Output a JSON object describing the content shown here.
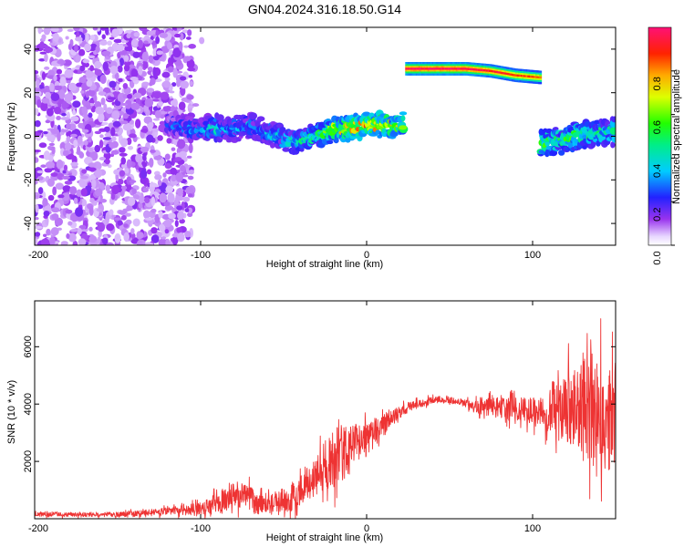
{
  "title": "GN04.2024.316.18.50.G14",
  "colors": {
    "snr_line": "#ee3333",
    "background": "#ffffff"
  },
  "chart_data": [
    {
      "type": "heatmap",
      "name": "spectrogram",
      "xlabel": "Height of straight line (km)",
      "ylabel": "Frequency (Hz)",
      "xlim": [
        -200,
        150
      ],
      "ylim": [
        -50,
        50
      ],
      "x_ticks": [
        "-200",
        "-100",
        "0",
        "100"
      ],
      "y_ticks": [
        "-40",
        "-20",
        "0",
        "20",
        "40"
      ],
      "colorbar": {
        "label": "Normalized spectral amplitude",
        "range": [
          0,
          1
        ],
        "ticks": [
          "0.0",
          "0.2",
          "0.4",
          "0.6",
          "0.8"
        ],
        "colormap": "rainbow (white-violet-blue-cyan-green-yellow-orange-red-magenta)"
      },
      "noise_region": {
        "x": [
          -200,
          -105
        ],
        "y": [
          -50,
          50
        ],
        "amplitude": 0.1
      },
      "ridge": [
        {
          "x": -120,
          "y": 6,
          "amp": 0.25
        },
        {
          "x": -110,
          "y": 4,
          "amp": 0.3
        },
        {
          "x": -100,
          "y": 3,
          "amp": 0.35
        },
        {
          "x": -90,
          "y": 4,
          "amp": 0.4
        },
        {
          "x": -80,
          "y": 3,
          "amp": 0.35
        },
        {
          "x": -70,
          "y": 5,
          "amp": 0.35
        },
        {
          "x": -60,
          "y": 2,
          "amp": 0.35
        },
        {
          "x": -50,
          "y": -1,
          "amp": 0.4
        },
        {
          "x": -40,
          "y": -2,
          "amp": 0.45
        },
        {
          "x": -30,
          "y": 1,
          "amp": 0.5
        },
        {
          "x": -20,
          "y": 3,
          "amp": 0.7
        },
        {
          "x": -10,
          "y": 4,
          "amp": 0.75
        },
        {
          "x": 0,
          "y": 5,
          "amp": 0.8
        },
        {
          "x": 10,
          "y": 5,
          "amp": 0.75
        },
        {
          "x": 22,
          "y": 5,
          "amp": 0.7
        }
      ],
      "upper_band": [
        {
          "x": 24,
          "y": 31,
          "amp": 1.0
        },
        {
          "x": 40,
          "y": 31,
          "amp": 1.0
        },
        {
          "x": 60,
          "y": 31,
          "amp": 1.0
        },
        {
          "x": 75,
          "y": 30,
          "amp": 0.95
        },
        {
          "x": 90,
          "y": 28,
          "amp": 0.9
        },
        {
          "x": 105,
          "y": 27,
          "amp": 0.85
        }
      ],
      "right_ridge": [
        {
          "x": 105,
          "y": -3,
          "amp": 0.6
        },
        {
          "x": 115,
          "y": -2,
          "amp": 0.5
        },
        {
          "x": 125,
          "y": 0,
          "amp": 0.55
        },
        {
          "x": 135,
          "y": 1,
          "amp": 0.5
        },
        {
          "x": 145,
          "y": 2,
          "amp": 0.45
        },
        {
          "x": 150,
          "y": 2,
          "amp": 0.45
        }
      ]
    },
    {
      "type": "line",
      "name": "snr",
      "xlabel": "Height of straight line (km)",
      "ylabel": "SNR (10 * v/v)",
      "xlim": [
        -200,
        150
      ],
      "ylim": [
        0,
        7600
      ],
      "x_ticks": [
        "-200",
        "-100",
        "0",
        "100"
      ],
      "y_ticks": [
        "2000",
        "4000",
        "6000"
      ],
      "envelope": [
        {
          "x": -200,
          "mean": 150,
          "noise": 100
        },
        {
          "x": -150,
          "mean": 150,
          "noise": 120
        },
        {
          "x": -120,
          "mean": 250,
          "noise": 200
        },
        {
          "x": -100,
          "mean": 350,
          "noise": 300
        },
        {
          "x": -85,
          "mean": 700,
          "noise": 600
        },
        {
          "x": -75,
          "mean": 900,
          "noise": 700
        },
        {
          "x": -65,
          "mean": 500,
          "noise": 500
        },
        {
          "x": -55,
          "mean": 600,
          "noise": 500
        },
        {
          "x": -45,
          "mean": 700,
          "noise": 700
        },
        {
          "x": -35,
          "mean": 1300,
          "noise": 800
        },
        {
          "x": -25,
          "mean": 1800,
          "noise": 1400
        },
        {
          "x": -15,
          "mean": 2300,
          "noise": 1500
        },
        {
          "x": -5,
          "mean": 2600,
          "noise": 1000
        },
        {
          "x": 5,
          "mean": 3000,
          "noise": 700
        },
        {
          "x": 15,
          "mean": 3500,
          "noise": 400
        },
        {
          "x": 25,
          "mean": 3900,
          "noise": 250
        },
        {
          "x": 40,
          "mean": 4150,
          "noise": 150
        },
        {
          "x": 55,
          "mean": 4100,
          "noise": 150
        },
        {
          "x": 65,
          "mean": 3900,
          "noise": 300
        },
        {
          "x": 75,
          "mean": 3900,
          "noise": 500
        },
        {
          "x": 90,
          "mean": 3800,
          "noise": 600
        },
        {
          "x": 105,
          "mean": 3700,
          "noise": 800
        },
        {
          "x": 115,
          "mean": 3800,
          "noise": 1400
        },
        {
          "x": 125,
          "mean": 3800,
          "noise": 2200
        },
        {
          "x": 135,
          "mean": 3700,
          "noise": 3000
        },
        {
          "x": 145,
          "mean": 3600,
          "noise": 2800
        },
        {
          "x": 150,
          "mean": 3500,
          "noise": 2500
        }
      ]
    }
  ]
}
